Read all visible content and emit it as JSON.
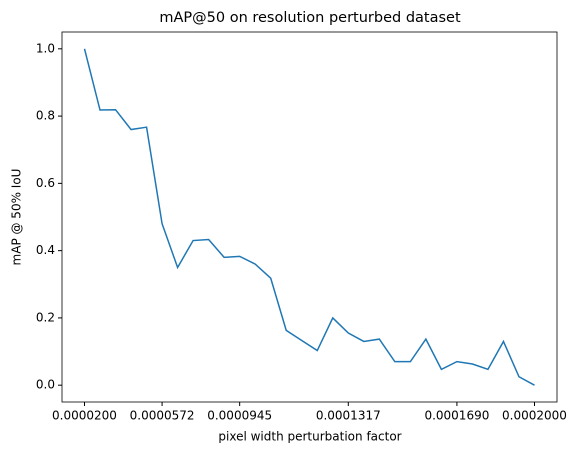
{
  "chart_data": {
    "type": "line",
    "title": "mAP@50 on resolution perturbed dataset",
    "x_label": "pixel width perturbation factor",
    "y_label": "mAP @ 50% IoU",
    "categories": [
      "0.0000200",
      null,
      null,
      null,
      null,
      "0.0000572",
      null,
      null,
      null,
      null,
      "0.0000945",
      null,
      null,
      null,
      null,
      null,
      null,
      "0.0001317",
      null,
      null,
      null,
      null,
      null,
      null,
      "0.0001690",
      null,
      null,
      null,
      null,
      "0.0002000"
    ],
    "series": [
      {
        "color": "#1f77b4",
        "values": [
          1.0,
          0.818,
          0.819,
          0.76,
          0.767,
          0.48,
          0.35,
          0.43,
          0.433,
          0.38,
          0.383,
          0.36,
          0.318,
          0.163,
          0.133,
          0.103,
          0.2,
          0.155,
          0.13,
          0.137,
          0.07,
          0.07,
          0.137,
          0.047,
          0.07,
          0.063,
          0.047,
          0.13,
          0.025,
          0.0
        ]
      }
    ],
    "ylim": [
      -0.05,
      1.05
    ],
    "yticks": [
      {
        "value": 0.0,
        "label": "0.0"
      },
      {
        "value": 0.2,
        "label": "0.2"
      },
      {
        "value": 0.4,
        "label": "0.4"
      },
      {
        "value": 0.6,
        "label": "0.6"
      },
      {
        "value": 0.8,
        "label": "0.8"
      },
      {
        "value": 1.0,
        "label": "1.0"
      }
    ]
  }
}
